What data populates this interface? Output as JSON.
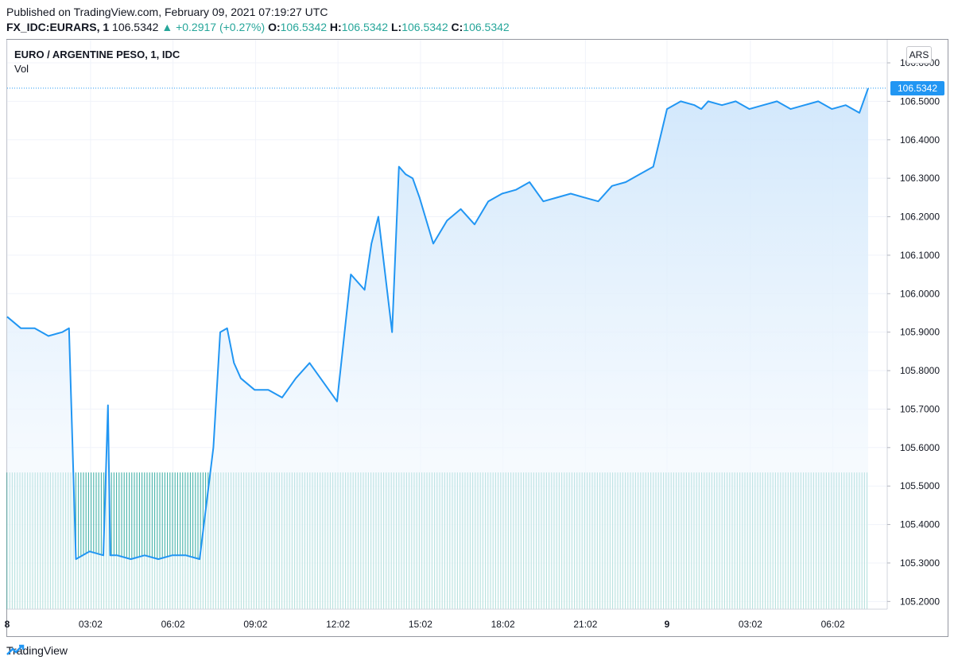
{
  "header": {
    "published": "Published on TradingView.com, February 09, 2021 07:19:27 UTC",
    "symbol": "FX_IDC:EURARS, 1",
    "last": "106.5342",
    "change_arrow": "▲",
    "change": "+0.2917 (+0.27%)",
    "o_label": "O:",
    "o_value": "106.5342",
    "h_label": "H:",
    "h_value": "106.5342",
    "l_label": "L:",
    "l_value": "106.5342",
    "c_label": "C:",
    "c_value": "106.5342"
  },
  "legend": {
    "title": "EURO / ARGENTINE PESO, 1, IDC",
    "volume": "Vol"
  },
  "currency_badge": "ARS",
  "last_price_label": "106.5342",
  "footer": {
    "brand": "TradingView",
    "logo_icon": "tradingview-logo-icon"
  },
  "colors": {
    "line": "#2196f3",
    "fill_top": "#cfe6fb",
    "fill_bottom": "#ffffff",
    "volume": "#26a69a",
    "up": "#26a69a",
    "price_badge": "#2196f3"
  },
  "chart_data": {
    "type": "area",
    "title": "EURO / ARGENTINE PESO, 1, IDC",
    "xlabel": "",
    "ylabel": "",
    "ylim": [
      105.18,
      106.66
    ],
    "y_ticks": [
      "106.6000",
      "106.5000",
      "106.4000",
      "106.3000",
      "106.2000",
      "106.1000",
      "106.0000",
      "105.9000",
      "105.8000",
      "105.7000",
      "105.6000",
      "105.5000",
      "105.4000",
      "105.3000",
      "105.2000"
    ],
    "x_tick_labels": [
      "8",
      "03:02",
      "06:02",
      "09:02",
      "12:02",
      "15:02",
      "18:02",
      "21:02",
      "9",
      "03:02",
      "06:02"
    ],
    "x": [
      "00:00",
      "00:30",
      "01:00",
      "01:30",
      "02:00",
      "02:15",
      "02:30",
      "03:00",
      "03:30",
      "03:40",
      "03:45",
      "04:00",
      "04:30",
      "05:00",
      "05:30",
      "06:00",
      "06:30",
      "07:00",
      "07:30",
      "07:45",
      "08:00",
      "08:15",
      "08:30",
      "09:00",
      "09:30",
      "10:00",
      "10:30",
      "11:00",
      "11:30",
      "12:00",
      "12:30",
      "13:00",
      "13:15",
      "13:30",
      "14:00",
      "14:15",
      "14:30",
      "14:45",
      "15:00",
      "15:30",
      "16:00",
      "16:30",
      "17:00",
      "17:30",
      "18:00",
      "18:30",
      "19:00",
      "19:30",
      "20:00",
      "20:30",
      "21:00",
      "21:30",
      "22:00",
      "22:30",
      "23:00",
      "23:30",
      "00:00",
      "00:30",
      "01:00",
      "01:15",
      "01:30",
      "02:00",
      "02:30",
      "03:00",
      "03:30",
      "04:00",
      "04:30",
      "05:00",
      "05:30",
      "06:00",
      "06:30",
      "07:00",
      "07:19"
    ],
    "values": [
      105.94,
      105.91,
      105.91,
      105.89,
      105.9,
      105.91,
      105.31,
      105.33,
      105.32,
      105.71,
      105.32,
      105.32,
      105.31,
      105.32,
      105.31,
      105.32,
      105.32,
      105.31,
      105.6,
      105.9,
      105.91,
      105.82,
      105.78,
      105.75,
      105.75,
      105.73,
      105.78,
      105.82,
      105.77,
      105.72,
      106.05,
      106.01,
      106.13,
      106.2,
      105.9,
      106.33,
      106.31,
      106.3,
      106.25,
      106.13,
      106.19,
      106.22,
      106.18,
      106.24,
      106.26,
      106.27,
      106.29,
      106.24,
      106.25,
      106.26,
      106.25,
      106.24,
      106.28,
      106.29,
      106.31,
      106.33,
      106.48,
      106.5,
      106.49,
      106.48,
      106.5,
      106.49,
      106.5,
      106.48,
      106.49,
      106.5,
      106.48,
      106.49,
      106.5,
      106.48,
      106.49,
      106.47,
      106.5342
    ],
    "last_value": 106.5342,
    "volume": {
      "shown": true,
      "level_fraction": 0.24
    },
    "grid": true,
    "legend": "top-left"
  }
}
